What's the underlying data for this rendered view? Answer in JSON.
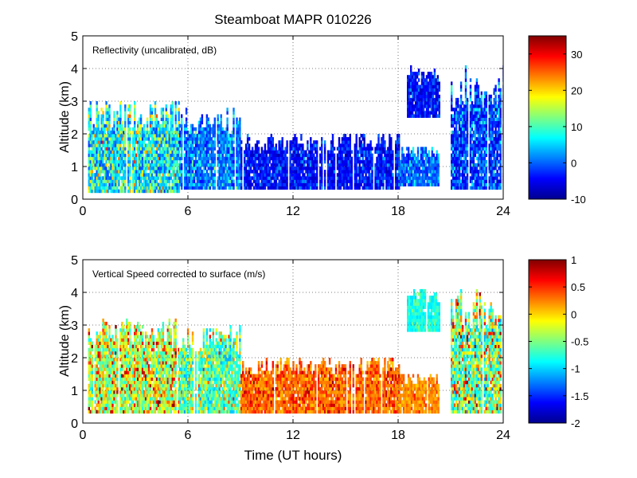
{
  "figure": {
    "title": "Steamboat MAPR 010226",
    "shared_xlabel": "Time (UT hours)"
  },
  "chart_data": [
    {
      "type": "heatmap",
      "id": "reflectivity",
      "annotation": "Reflectivity (uncalibrated, dB)",
      "xlabel": "",
      "ylabel": "Altitude (km)",
      "xlim": [
        0,
        24
      ],
      "ylim": [
        0,
        5
      ],
      "xticks": [
        "0",
        "6",
        "12",
        "18",
        "24"
      ],
      "yticks": [
        "0",
        "1",
        "2",
        "3",
        "4",
        "5"
      ],
      "grid": "dotted",
      "colorbar": {
        "range": [
          -10,
          35
        ],
        "ticks": [
          "-10",
          "0",
          "10",
          "20",
          "30"
        ],
        "tick_values": [
          -10,
          0,
          10,
          20,
          30
        ],
        "colormap": "jet"
      },
      "echo_regions": [
        {
          "t": [
            0.3,
            5.5
          ],
          "alt": [
            0.2,
            3.0
          ],
          "level": "-3 to 22"
        },
        {
          "t": [
            5.5,
            9.0
          ],
          "alt": [
            0.3,
            2.8
          ],
          "level": "-5 to 10"
        },
        {
          "t": [
            9.0,
            18.0
          ],
          "alt": [
            0.3,
            2.0
          ],
          "level": "-8 to 2"
        },
        {
          "t": [
            18.0,
            20.3
          ],
          "alt": [
            0.4,
            1.6
          ],
          "level": "-5 to 8"
        },
        {
          "t": [
            18.5,
            20.3
          ],
          "alt": [
            2.5,
            4.1
          ],
          "level": "-8 to 2"
        },
        {
          "t": [
            21.0,
            24.0
          ],
          "alt": [
            0.3,
            4.1
          ],
          "level": "-8 to 8"
        }
      ]
    },
    {
      "type": "heatmap",
      "id": "vertical_speed",
      "annotation": "Vertical Speed corrected to surface (m/s)",
      "xlabel": "Time (UT hours)",
      "ylabel": "Altitude (km)",
      "xlim": [
        0,
        24
      ],
      "ylim": [
        0,
        5
      ],
      "xticks": [
        "0",
        "6",
        "12",
        "18",
        "24"
      ],
      "yticks": [
        "0",
        "1",
        "2",
        "3",
        "4",
        "5"
      ],
      "grid": "dotted",
      "colorbar": {
        "range": [
          -2,
          1
        ],
        "ticks": [
          "-2",
          "-1.5",
          "-1",
          "-0.5",
          "0",
          "0.5",
          "1"
        ],
        "tick_values": [
          -2,
          -1.5,
          -1,
          -0.5,
          0,
          0.5,
          1
        ],
        "colormap": "jet"
      },
      "echo_regions": [
        {
          "t": [
            0.3,
            5.5
          ],
          "alt": [
            0.3,
            3.2
          ],
          "level": "-1 to 0.8"
        },
        {
          "t": [
            5.5,
            9.0
          ],
          "alt": [
            0.3,
            3.0
          ],
          "level": "-1.2 to 0.3"
        },
        {
          "t": [
            9.0,
            18.0
          ],
          "alt": [
            0.3,
            2.0
          ],
          "level": "0 to 0.8"
        },
        {
          "t": [
            18.0,
            20.3
          ],
          "alt": [
            0.3,
            1.5
          ],
          "level": "0 to 0.5"
        },
        {
          "t": [
            18.5,
            20.3
          ],
          "alt": [
            2.8,
            4.1
          ],
          "level": "-1 to -0.5"
        },
        {
          "t": [
            21.0,
            24.0
          ],
          "alt": [
            0.3,
            4.1
          ],
          "level": "-1.3 to 0.8"
        }
      ]
    }
  ]
}
